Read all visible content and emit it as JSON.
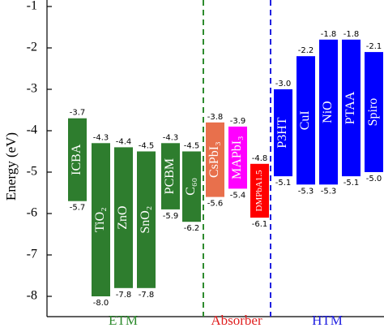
{
  "chart_data": {
    "type": "floating-bar",
    "ylabel": "Energy (eV)",
    "categories": [
      "ICBA",
      "TiO₂",
      "ZnO",
      "SnO₂",
      "PCBM",
      "C₆₀",
      "CsPbI₃",
      "MAPbI₃",
      "DMPbA1.5",
      "P3HT",
      "CuI",
      "NiO",
      "PTAA",
      "Spiro"
    ],
    "colors": [
      "#2e7d2e",
      "#2e7d2e",
      "#2e7d2e",
      "#2e7d2e",
      "#2e7d2e",
      "#2e7d2e",
      "#e8704c",
      "#ff00ff",
      "#ff0000",
      "#0000ff",
      "#0000ff",
      "#0000ff",
      "#0000ff",
      "#0000ff"
    ],
    "series": [
      {
        "values": [
          -3.7,
          -4.3,
          -4.4,
          -4.5,
          -4.3,
          -4.5,
          -3.8,
          -3.9,
          -4.8,
          -3.0,
          -2.2,
          -1.8,
          -1.8,
          -2.1
        ],
        "value_labels": [
          "-3.7",
          "-4.3",
          "-4.4",
          "-4.5",
          "-4.3",
          "-4.5",
          "-3.8",
          "-3.9",
          "-4.8",
          "-3.0",
          "-2.2",
          "-1.8",
          "-1.8",
          "-2.1"
        ]
      },
      {
        "values": [
          -5.7,
          -8.0,
          -7.8,
          -7.8,
          -5.9,
          -6.2,
          -5.6,
          -5.4,
          -6.1,
          -5.1,
          -5.3,
          -5.3,
          -5.1,
          -5.0
        ],
        "value_labels": [
          "-5.7",
          "-8.0",
          "-7.8",
          "-7.8",
          "-5.9",
          "-6.2",
          "-5.6",
          "-5.4",
          "-6.1",
          "-5.1",
          "-5.3",
          "-5.3",
          "-5.1",
          "-5.0"
        ]
      }
    ],
    "groups": [
      {
        "label": "ETM",
        "color": "#2e8b2e"
      },
      {
        "label": "Absorber",
        "color": "#e02020"
      },
      {
        "label": "HTM",
        "color": "#2020e0"
      }
    ],
    "ylim": [
      -8.5,
      -1
    ],
    "yticks": [
      -1,
      -2,
      -3,
      -4,
      -5,
      -6,
      -7,
      -8
    ]
  }
}
